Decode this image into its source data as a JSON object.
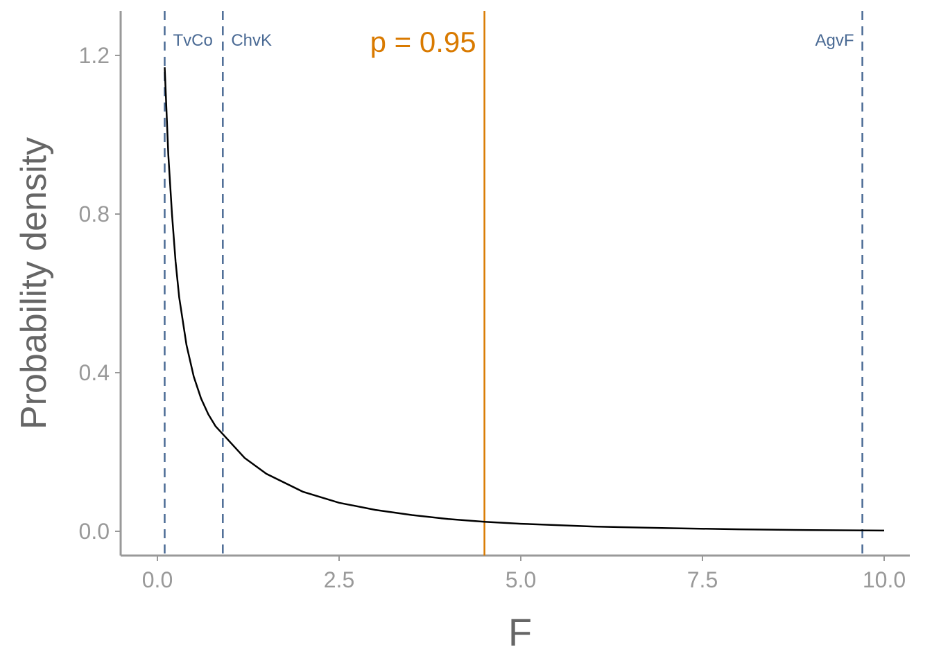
{
  "chart_data": {
    "type": "line",
    "xlabel": "F",
    "ylabel": "Probability density",
    "xlim": [
      0,
      10
    ],
    "ylim": [
      0,
      1.2
    ],
    "x_ticks": [
      "0.0",
      "2.5",
      "5.0",
      "7.5",
      "10.0"
    ],
    "y_ticks": [
      "0.0",
      "0.4",
      "0.8",
      "1.2"
    ],
    "grid": false,
    "series": [
      {
        "color": "#000000",
        "x": [
          0.1,
          0.15,
          0.2,
          0.25,
          0.3,
          0.4,
          0.5,
          0.6,
          0.7,
          0.8,
          0.9,
          1.0,
          1.2,
          1.5,
          2.0,
          2.5,
          3.0,
          3.5,
          4.0,
          4.5,
          5.0,
          6.0,
          7.0,
          8.0,
          9.0,
          10.0
        ],
        "y": [
          1.17,
          0.95,
          0.8,
          0.68,
          0.59,
          0.47,
          0.39,
          0.335,
          0.295,
          0.265,
          0.245,
          0.225,
          0.185,
          0.145,
          0.1,
          0.072,
          0.054,
          0.041,
          0.031,
          0.024,
          0.019,
          0.012,
          0.008,
          0.005,
          0.003,
          0.002
        ]
      }
    ],
    "reference_lines": [
      {
        "label": "TvCo",
        "x": 0.1,
        "style": "dashed",
        "color": "#4a6a94",
        "label_side": "right"
      },
      {
        "label": "ChvK",
        "x": 0.9,
        "style": "dashed",
        "color": "#4a6a94",
        "label_side": "right"
      },
      {
        "label": "AgvF",
        "x": 9.7,
        "style": "dashed",
        "color": "#4a6a94",
        "label_side": "left"
      },
      {
        "label": "p = 0.95",
        "x": 4.5,
        "style": "solid",
        "color": "#d97a00",
        "label_side": "left"
      }
    ]
  },
  "colors": {
    "axis": "#999999",
    "axis_title": "#666666",
    "curve": "#000000",
    "dashed_lines": "#4a6a94",
    "critical_line": "#d97a00"
  }
}
